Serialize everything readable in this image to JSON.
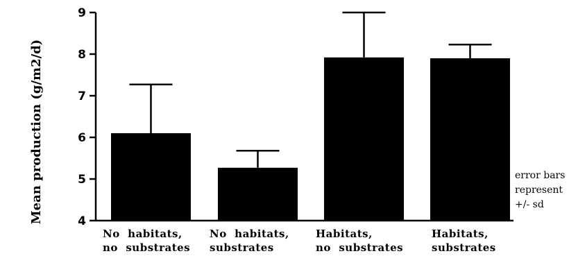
{
  "chart_data": {
    "type": "bar",
    "ylabel": "Mean production  (g/m2/d)",
    "xlabel": "",
    "ylim": [
      4,
      9
    ],
    "yticks": [
      "4",
      "5",
      "6",
      "7",
      "8",
      "9"
    ],
    "categories": [
      [
        "No  habitats,",
        "no  substrates"
      ],
      [
        "No  habitats,",
        "substrates"
      ],
      [
        "Habitats,",
        "no  substrates"
      ],
      [
        "Habitats,",
        "substrates"
      ]
    ],
    "values": [
      6.1,
      5.27,
      7.92,
      7.9
    ],
    "error_upper": [
      7.27,
      5.68,
      9.0,
      8.23
    ],
    "bar_color": "#000000",
    "grid": false,
    "annotation": [
      "error bars",
      "represent",
      "+/-  sd"
    ]
  }
}
